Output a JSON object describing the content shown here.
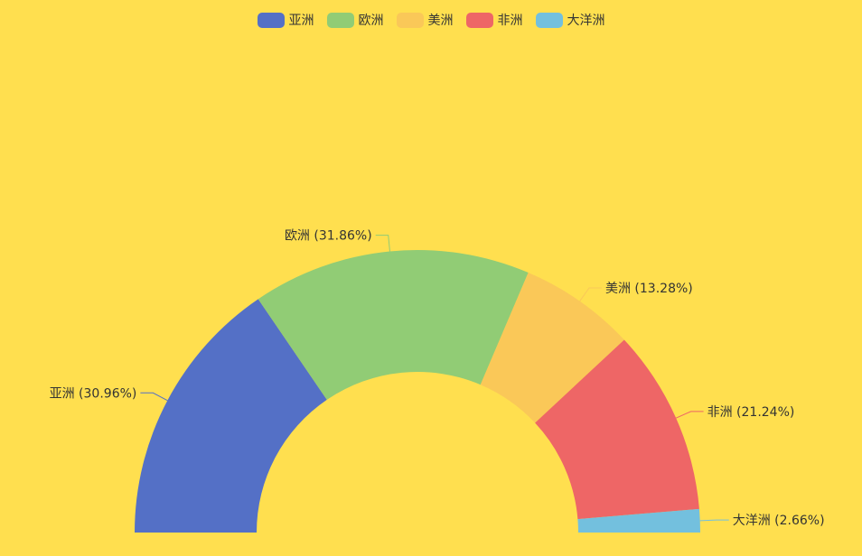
{
  "chart_data": {
    "type": "pie",
    "variant": "half-donut",
    "title": "",
    "legend_position": "top-center",
    "slices": [
      {
        "name": "亚洲",
        "value": 30.96,
        "label": "亚洲 (30.96%)",
        "color": "#5470c6"
      },
      {
        "name": "欧洲",
        "value": 31.86,
        "label": "欧洲 (31.86%)",
        "color": "#91cc75"
      },
      {
        "name": "美洲",
        "value": 13.28,
        "label": "美洲 (13.28%)",
        "color": "#fac858"
      },
      {
        "name": "非洲",
        "value": 21.24,
        "label": "非洲 (21.24%)",
        "color": "#ee6666"
      },
      {
        "name": "大洋洲",
        "value": 2.66,
        "label": "大洋洲 (2.66%)",
        "color": "#73c0de"
      }
    ]
  },
  "background_color": "#ffdf4f"
}
